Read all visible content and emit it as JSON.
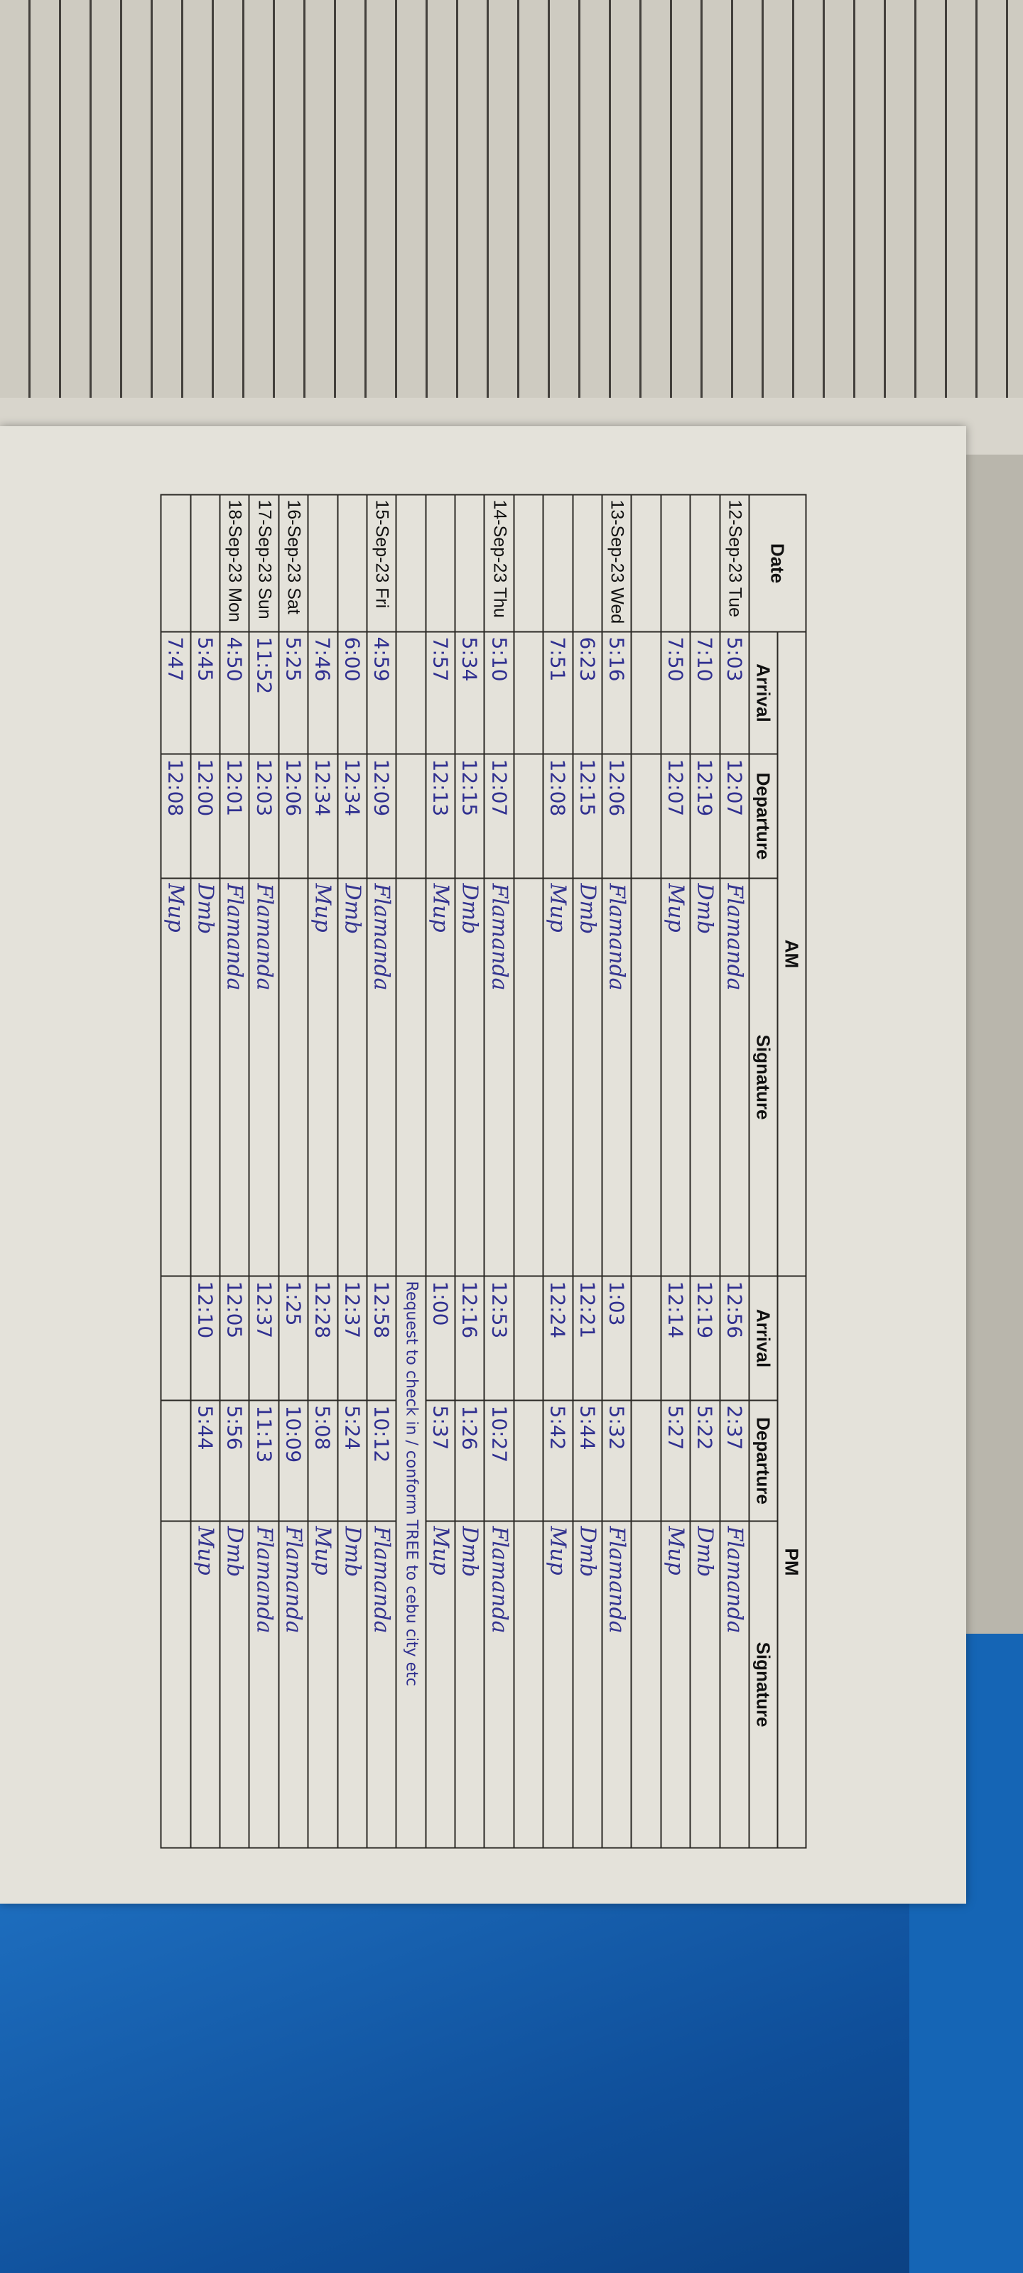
{
  "header": {
    "date": "Date",
    "am": "AM",
    "pm": "PM",
    "arrival": "Arrival",
    "departure": "Departure",
    "signature": "Signature"
  },
  "rows": [
    {
      "date": "12-Sep-23 Tue",
      "am_arr": "5:03",
      "am_dep": "12:07",
      "am_sig": "Flamanda",
      "pm_arr": "12:56",
      "pm_dep": "2:37",
      "pm_sig": "Flamanda"
    },
    {
      "date": "",
      "am_arr": "7:10",
      "am_dep": "12:19",
      "am_sig": "Dmb",
      "pm_arr": "12:19",
      "pm_dep": "5:22",
      "pm_sig": "Dmb"
    },
    {
      "date": "",
      "am_arr": "7:50",
      "am_dep": "12:07",
      "am_sig": "Mup",
      "pm_arr": "12:14",
      "pm_dep": "5:27",
      "pm_sig": "Mup"
    },
    {
      "date": "",
      "am_arr": "",
      "am_dep": "",
      "am_sig": "",
      "pm_arr": "",
      "pm_dep": "",
      "pm_sig": ""
    },
    {
      "date": "13-Sep-23 Wed",
      "am_arr": "5:16",
      "am_dep": "12:06",
      "am_sig": "Flamanda",
      "pm_arr": "1:03",
      "pm_dep": "5:32",
      "pm_sig": "Flamanda"
    },
    {
      "date": "",
      "am_arr": "6:23",
      "am_dep": "12:15",
      "am_sig": "Dmb",
      "pm_arr": "12:21",
      "pm_dep": "5:44",
      "pm_sig": "Dmb"
    },
    {
      "date": "",
      "am_arr": "7:51",
      "am_dep": "12:08",
      "am_sig": "Mup",
      "pm_arr": "12:24",
      "pm_dep": "5:42",
      "pm_sig": "Mup"
    },
    {
      "date": "",
      "am_arr": "",
      "am_dep": "",
      "am_sig": "",
      "pm_arr": "",
      "pm_dep": "",
      "pm_sig": ""
    },
    {
      "date": "14-Sep-23 Thu",
      "am_arr": "5:10",
      "am_dep": "12:07",
      "am_sig": "Flamanda",
      "pm_arr": "12:53",
      "pm_dep": "10:27",
      "pm_sig": "Flamanda"
    },
    {
      "date": "",
      "am_arr": "5:34",
      "am_dep": "12:15",
      "am_sig": "Dmb",
      "pm_arr": "12:16",
      "pm_dep": "1:26",
      "pm_sig": "Dmb"
    },
    {
      "date": "",
      "am_arr": "7:57",
      "am_dep": "12:13",
      "am_sig": "Mup",
      "pm_arr": "1:00",
      "pm_dep": "5:37",
      "pm_sig": "Mup"
    },
    {
      "date": "",
      "am_arr": "",
      "am_dep": "",
      "am_sig": "",
      "pm_note": "Request to check in / conform TREE to cebu city etc"
    },
    {
      "date": "15-Sep-23 Fri",
      "am_arr": "4:59",
      "am_dep": "12:09",
      "am_sig": "Flamanda",
      "pm_arr": "12:58",
      "pm_dep": "10:12",
      "pm_sig": "Flamanda"
    },
    {
      "date": "",
      "am_arr": "6:00",
      "am_dep": "12:34",
      "am_sig": "Dmb",
      "pm_arr": "12:37",
      "pm_dep": "5:24",
      "pm_sig": "Dmb"
    },
    {
      "date": "",
      "am_arr": "7:46",
      "am_dep": "12:34",
      "am_sig": "Mup",
      "pm_arr": "12:28",
      "pm_dep": "5:08",
      "pm_sig": "Mup"
    },
    {
      "date": "16-Sep-23 Sat",
      "am_arr": "5:25",
      "am_dep": "12:06",
      "am_sig": "",
      "pm_arr": "1:25",
      "pm_dep": "10:09",
      "pm_sig": "Flamanda"
    },
    {
      "date": "17-Sep-23 Sun",
      "am_arr": "11:52",
      "am_dep": "12:03",
      "am_sig": "Flamanda",
      "pm_arr": "12:37",
      "pm_dep": "11:13",
      "pm_sig": "Flamanda"
    },
    {
      "date": "18-Sep-23 Mon",
      "am_arr": "4:50",
      "am_dep": "12:01",
      "am_sig": "Flamanda",
      "pm_arr": "12:05",
      "pm_dep": "5:56",
      "pm_sig": "Dmb"
    },
    {
      "date": "",
      "am_arr": "5:45",
      "am_dep": "12:00",
      "am_sig": "Dmb",
      "pm_arr": "12:10",
      "pm_dep": "5:44",
      "pm_sig": "Mup"
    },
    {
      "date": "",
      "am_arr": "7:47",
      "am_dep": "12:08",
      "am_sig": "Mup",
      "pm_arr": "",
      "pm_dep": "",
      "pm_sig": ""
    }
  ],
  "colors": {
    "ink": "#33338f",
    "paper": "#e4e2da",
    "folder_blue": "#1565b5"
  }
}
